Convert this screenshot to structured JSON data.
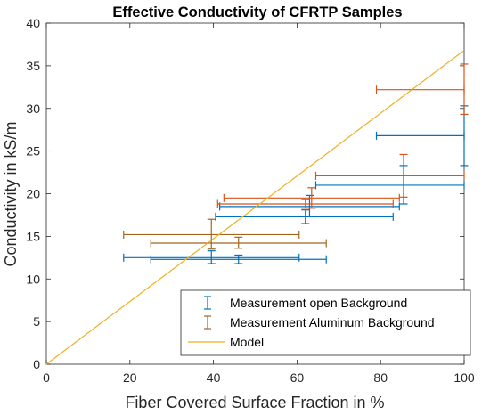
{
  "chart_data": {
    "type": "scatter",
    "title": "Effective Conductivity of CFRTP Samples",
    "xlabel": "Fiber Covered Surface Fraction in %",
    "ylabel": "Conductivity in kS/m",
    "xlim": [
      0,
      100
    ],
    "ylim": [
      0,
      40
    ],
    "xticks": [
      "0",
      "20",
      "40",
      "60",
      "80",
      "100"
    ],
    "yticks": [
      "0",
      "5",
      "10",
      "15",
      "20",
      "25",
      "30",
      "35",
      "40"
    ],
    "grid": false,
    "legend_position": "bottom-right",
    "series": [
      {
        "name": "Measurement open Background",
        "color": "#0072BD",
        "kind": "errorbar",
        "points": [
          {
            "x": 39.5,
            "y": 12.5,
            "xlo": 18.5,
            "xhi": 60.5,
            "ylo": 11.8,
            "yhi": 13.3
          },
          {
            "x": 46.0,
            "y": 12.3,
            "xlo": 25.0,
            "xhi": 67.0,
            "ylo": 11.8,
            "yhi": 12.8
          },
          {
            "x": 62.0,
            "y": 17.3,
            "xlo": 40.5,
            "xhi": 83.0,
            "ylo": 16.5,
            "yhi": 18.1
          },
          {
            "x": 63.0,
            "y": 18.5,
            "xlo": 41.5,
            "xhi": 84.5,
            "ylo": 17.3,
            "yhi": 19.8
          },
          {
            "x": 85.5,
            "y": 21.0,
            "xlo": 64.5,
            "xhi": 100.0,
            "ylo": 18.8,
            "yhi": 23.3
          },
          {
            "x": 100.0,
            "y": 26.8,
            "xlo": 79.0,
            "xhi": 100.0,
            "ylo": 23.3,
            "yhi": 30.3
          }
        ]
      },
      {
        "name": "Measurement Aluminum Background",
        "color": "#D95319",
        "kind": "errorbar",
        "points": [
          {
            "x": 62.0,
            "y": 18.8,
            "xlo": 41.0,
            "xhi": 83.0,
            "ylo": 18.3,
            "yhi": 19.3
          },
          {
            "x": 63.5,
            "y": 19.5,
            "xlo": 42.5,
            "xhi": 84.5,
            "ylo": 18.3,
            "yhi": 20.7
          },
          {
            "x": 85.5,
            "y": 22.1,
            "xlo": 64.5,
            "xhi": 100.0,
            "ylo": 19.6,
            "yhi": 24.6
          },
          {
            "x": 100.0,
            "y": 32.2,
            "xlo": 79.0,
            "xhi": 100.0,
            "ylo": 29.3,
            "yhi": 35.2
          }
        ]
      },
      {
        "name": "",
        "color": "#A2661F",
        "kind": "errorbar",
        "points": [
          {
            "x": 39.5,
            "y": 15.2,
            "xlo": 18.5,
            "xhi": 60.5,
            "ylo": 13.5,
            "yhi": 17.0
          },
          {
            "x": 46.0,
            "y": 14.2,
            "xlo": 25.0,
            "xhi": 67.0,
            "ylo": 13.6,
            "yhi": 14.9
          }
        ]
      },
      {
        "name": "Model",
        "color": "#EDB120",
        "kind": "line",
        "x": [
          0,
          100
        ],
        "y": [
          0,
          36.8
        ]
      }
    ],
    "legend": [
      {
        "label": "Measurement open Background",
        "color": "#0072BD",
        "marker": "errorbar"
      },
      {
        "label": "Measurement Aluminum Background",
        "color": "#A2661F",
        "marker": "errorbar"
      },
      {
        "label": "Model",
        "color": "#EDB120",
        "marker": "line"
      }
    ]
  }
}
